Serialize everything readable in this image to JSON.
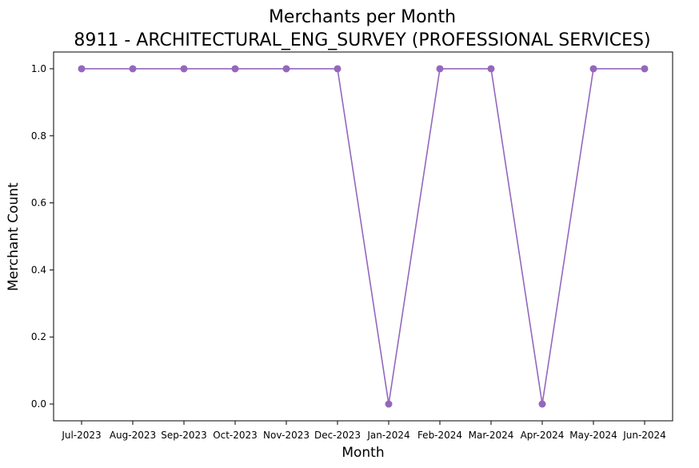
{
  "chart_data": {
    "type": "line",
    "title": "Merchants per Month",
    "subtitle": "8911 - ARCHITECTURAL_ENG_SURVEY (PROFESSIONAL SERVICES)",
    "xlabel": "Month",
    "ylabel": "Merchant Count",
    "categories": [
      "Jul-2023",
      "Aug-2023",
      "Sep-2023",
      "Oct-2023",
      "Nov-2023",
      "Dec-2023",
      "Jan-2024",
      "Feb-2024",
      "Mar-2024",
      "Apr-2024",
      "May-2024",
      "Jun-2024"
    ],
    "series": [
      {
        "values": [
          1,
          1,
          1,
          1,
          1,
          1,
          0,
          1,
          1,
          0,
          1,
          1
        ]
      }
    ],
    "yticks": [
      "0.0",
      "0.2",
      "0.4",
      "0.6",
      "0.8",
      "1.0"
    ],
    "ylim": [
      -0.05,
      1.05
    ],
    "grid": false,
    "line_color": "#9467bd",
    "marker": "circle"
  }
}
